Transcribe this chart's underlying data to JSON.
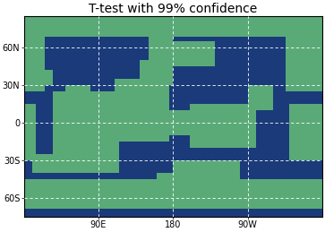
{
  "title": "T-test with 99% confidence",
  "title_fontsize": 10,
  "color_significant": "#5aaa78",
  "color_not_significant": "#1a3a7a",
  "color_land": "white",
  "color_border": "black",
  "gridline_color": "white",
  "xtick_labels": [
    "90E",
    "180",
    "90W"
  ],
  "xtick_positions": [
    90,
    180,
    270
  ],
  "ytick_labels": [
    "60N",
    "30N",
    "0",
    "30S",
    "60S"
  ],
  "ytick_positions": [
    60,
    30,
    0,
    -30,
    -60
  ],
  "fig_width": 3.63,
  "fig_height": 2.59,
  "dpi": 100,
  "lat_min": -75,
  "lat_max": 85,
  "lon_min": 0,
  "lon_max": 360
}
